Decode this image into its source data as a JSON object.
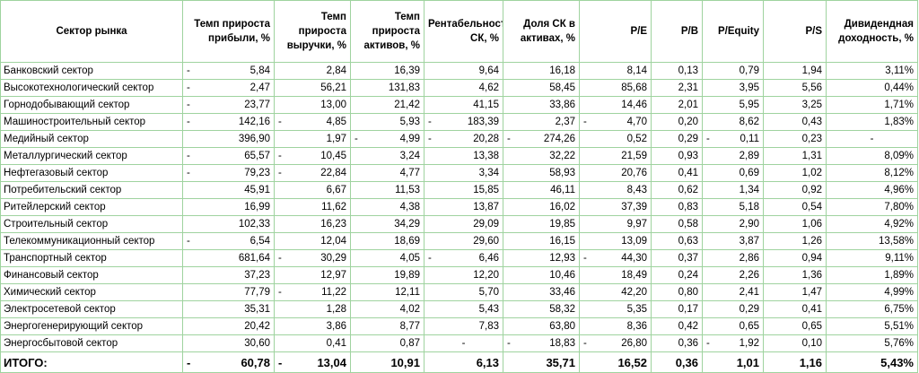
{
  "table": {
    "header": [
      "Сектор рынка",
      "Темп прироста прибыли, %",
      "Темп прироста выручки, %",
      "Темп прироста активов, %",
      "Рентабельность СК, %",
      "Доля СК в активах, %",
      "P/E",
      "P/B",
      "P/Equity",
      "P/S",
      "Дивидендная доходность, %"
    ],
    "rows": [
      [
        "Банковский сектор",
        [
          "-",
          "5,84"
        ],
        "2,84",
        "16,39",
        "9,64",
        "16,18",
        "8,14",
        "0,13",
        "0,79",
        "1,94",
        "3,11%"
      ],
      [
        "Высокотехнологический сектор",
        [
          "-",
          "2,47"
        ],
        "56,21",
        "131,83",
        "4,62",
        "58,45",
        "85,68",
        "2,31",
        "3,95",
        "5,56",
        "0,44%"
      ],
      [
        "Горнодобывающий сектор",
        [
          "-",
          "23,77"
        ],
        "13,00",
        "21,42",
        "41,15",
        "33,86",
        "14,46",
        "2,01",
        "5,95",
        "3,25",
        "1,71%"
      ],
      [
        "Машиностроительный сектор",
        [
          "-",
          "142,16"
        ],
        [
          "-",
          "4,85"
        ],
        "5,93",
        [
          "-",
          "183,39"
        ],
        "2,37",
        [
          "-",
          "4,70"
        ],
        "0,20",
        "8,62",
        "0,43",
        "1,83%"
      ],
      [
        "Медийный сектор",
        "396,90",
        "1,97",
        [
          "-",
          "4,99"
        ],
        [
          "-",
          "20,28"
        ],
        [
          "-",
          "274,26"
        ],
        "0,52",
        "0,29",
        [
          "-",
          "0,11"
        ],
        "0,23",
        "-"
      ],
      [
        "Металлургический сектор",
        [
          "-",
          "65,57"
        ],
        [
          "-",
          "10,45"
        ],
        "3,24",
        "13,38",
        "32,22",
        "21,59",
        "0,93",
        "2,89",
        "1,31",
        "8,09%"
      ],
      [
        "Нефтегазовый сектор",
        [
          "-",
          "79,23"
        ],
        [
          "-",
          "22,84"
        ],
        "4,77",
        "3,34",
        "58,93",
        "20,76",
        "0,41",
        "0,69",
        "1,02",
        "8,12%"
      ],
      [
        "Потребительский сектор",
        "45,91",
        "6,67",
        "11,53",
        "15,85",
        "46,11",
        "8,43",
        "0,62",
        "1,34",
        "0,92",
        "4,96%"
      ],
      [
        "Ритейлерский сектор",
        "16,99",
        "11,62",
        "4,38",
        "13,87",
        "16,02",
        "37,39",
        "0,83",
        "5,18",
        "0,54",
        "7,80%"
      ],
      [
        "Строительный сектор",
        "102,33",
        "16,23",
        "34,29",
        "29,09",
        "19,85",
        "9,97",
        "0,58",
        "2,90",
        "1,06",
        "4,92%"
      ],
      [
        "Телекоммуникационный сектор",
        [
          "-",
          "6,54"
        ],
        "12,04",
        "18,69",
        "29,60",
        "16,15",
        "13,09",
        "0,63",
        "3,87",
        "1,26",
        "13,58%"
      ],
      [
        "Транспортный сектор",
        "681,64",
        [
          "-",
          "30,29"
        ],
        "4,05",
        [
          "-",
          "6,46"
        ],
        "12,93",
        [
          "-",
          "44,30"
        ],
        "0,37",
        "2,86",
        "0,94",
        "9,11%"
      ],
      [
        "Финансовый сектор",
        "37,23",
        "12,97",
        "19,89",
        "12,20",
        "10,46",
        "18,49",
        "0,24",
        "2,26",
        "1,36",
        "1,89%"
      ],
      [
        "Химический сектор",
        "77,79",
        [
          "-",
          "11,22"
        ],
        "12,11",
        "5,70",
        "33,46",
        "42,20",
        "0,80",
        "2,41",
        "1,47",
        "4,99%"
      ],
      [
        "Электросетевой сектор",
        "35,31",
        "1,28",
        "4,02",
        "5,43",
        "58,32",
        "5,35",
        "0,17",
        "0,29",
        "0,41",
        "6,75%"
      ],
      [
        "Энергогенерирующий сектор",
        "20,42",
        "3,86",
        "8,77",
        "7,83",
        "63,80",
        "8,36",
        "0,42",
        "0,65",
        "0,65",
        "5,51%"
      ],
      [
        "Энергосбытовой сектор",
        "30,60",
        "0,41",
        "0,87",
        "-",
        [
          "-",
          "18,83"
        ],
        [
          "-",
          "26,80"
        ],
        "0,36",
        [
          "-",
          "1,92"
        ],
        "0,10",
        "5,76%"
      ]
    ],
    "total": [
      "ИТОГО:",
      [
        "-",
        "60,78"
      ],
      [
        "-",
        "13,04"
      ],
      "10,91",
      "6,13",
      "35,71",
      "16,52",
      "0,36",
      "1,01",
      "1,16",
      "5,43%"
    ]
  }
}
